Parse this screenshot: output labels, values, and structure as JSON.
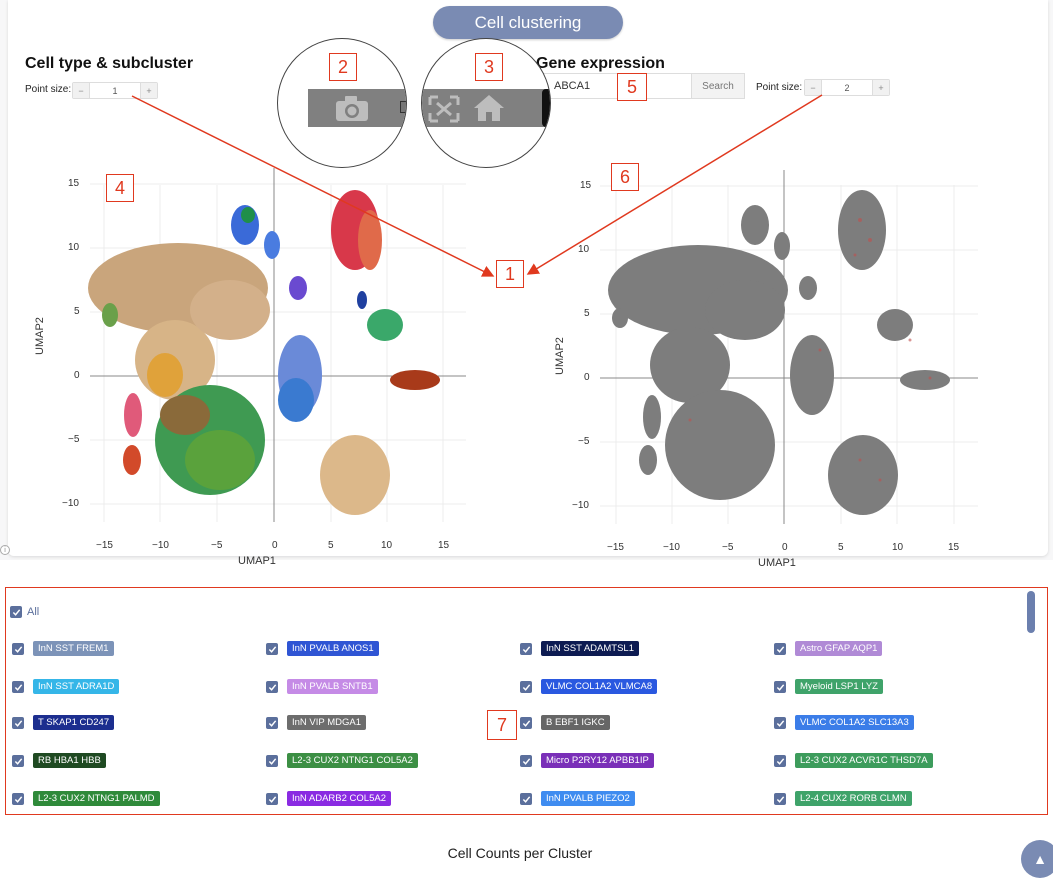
{
  "header": {
    "title": "Cell clustering"
  },
  "left_panel": {
    "heading": "Cell type & subcluster",
    "point_size_label": "Point size:",
    "point_size_value": "1"
  },
  "right_panel": {
    "heading": "Gene expression",
    "gene_value": "ABCA1",
    "search_label": "Search",
    "point_size_label": "Point size:",
    "point_size_value": "2"
  },
  "callouts": [
    "1",
    "2",
    "3",
    "4",
    "5",
    "6",
    "7"
  ],
  "axes": {
    "xlabel": "UMAP1",
    "ylabel": "UMAP2",
    "left_x_ticks": [
      "−15",
      "−10",
      "−5",
      "0",
      "5",
      "10",
      "15"
    ],
    "left_y_ticks": [
      "15",
      "10",
      "5",
      "0",
      "−5",
      "−10"
    ],
    "right_x_ticks": [
      "−15",
      "−10",
      "−5",
      "0",
      "5",
      "10",
      "15"
    ],
    "right_y_ticks": [
      "15",
      "10",
      "5",
      "0",
      "−5",
      "−10"
    ]
  },
  "legend": {
    "all_label": "All",
    "items": [
      {
        "label": "InN SST FREM1",
        "color": "#7c93b8"
      },
      {
        "label": "InN PVALB ANOS1",
        "color": "#2f55d4"
      },
      {
        "label": "InN SST ADAMTSL1",
        "color": "#0d1b52"
      },
      {
        "label": "Astro GFAP AQP1",
        "color": "#b08ad6"
      },
      {
        "label": "InN SST ADRA1D",
        "color": "#35b6e8"
      },
      {
        "label": "InN PVALB SNTB1",
        "color": "#c58be6"
      },
      {
        "label": "VLMC COL1A2 VLMCA8",
        "color": "#2a58e0"
      },
      {
        "label": "Myeloid LSP1 LYZ",
        "color": "#3fa36a"
      },
      {
        "label": "T SKAP1 CD247",
        "color": "#1c2e8f"
      },
      {
        "label": "InN VIP MDGA1",
        "color": "#6d6d6d"
      },
      {
        "label": "B EBF1 IGKC",
        "color": "#666666"
      },
      {
        "label": "VLMC COL1A2 SLC13A3",
        "color": "#3b7de8"
      },
      {
        "label": "RB HBA1 HBB",
        "color": "#1f4a22"
      },
      {
        "label": "L2-3 CUX2 NTNG1 COL5A2",
        "color": "#3c8f44"
      },
      {
        "label": "Micro P2RY12 APBB1IP",
        "color": "#7a2fb8"
      },
      {
        "label": "L2-3 CUX2 ACVR1C THSD7A",
        "color": "#3d9c5c"
      },
      {
        "label": "L2-3 CUX2 NTNG1 PALMD",
        "color": "#2f8a3a"
      },
      {
        "label": "InN ADARB2 COL5A2",
        "color": "#8a2be2"
      },
      {
        "label": "InN PVALB PIEZO2",
        "color": "#3f8cf0"
      },
      {
        "label": "L2-4 CUX2 RORB CLMN",
        "color": "#3fa36a"
      }
    ]
  },
  "footer": {
    "title": "Cell Counts per Cluster"
  },
  "colors": {
    "accent": "#7a8bb3",
    "callout": "#e0391f"
  }
}
